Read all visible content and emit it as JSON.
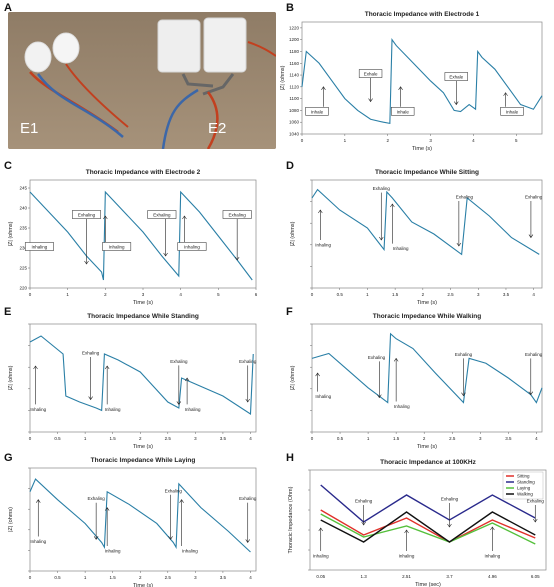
{
  "panels": {
    "A": "A",
    "B": "B",
    "C": "C",
    "D": "D",
    "E": "E",
    "F": "F",
    "G": "G",
    "H": "H"
  },
  "photo": {
    "left_label": "E1",
    "right_label": "E2"
  },
  "colors": {
    "line": "#2a7fa6",
    "sitting": "#e0312a",
    "standing": "#2a2a8c",
    "laying": "#55c03c",
    "walking": "#111111"
  },
  "chart_data": [
    {
      "id": "B",
      "type": "line",
      "title": "Thoracic Impedance with Electrode 1",
      "xlabel": "Time (s)",
      "ylabel": "|Z| (ohms)",
      "xlim": [
        0,
        5.6
      ],
      "ylim": [
        1040,
        1230
      ],
      "xticks": [
        0,
        1,
        2,
        3,
        4,
        5
      ],
      "yticks": [
        1040,
        1060,
        1080,
        1100,
        1120,
        1140,
        1160,
        1180,
        1200,
        1220
      ],
      "x": [
        0,
        0.1,
        0.4,
        0.7,
        1.0,
        1.3,
        1.6,
        1.9,
        2.05,
        2.1,
        2.2,
        2.6,
        3.0,
        3.3,
        3.55,
        3.7,
        3.9,
        4.05,
        4.1,
        4.2,
        4.5,
        4.8,
        5.1,
        5.4,
        5.6
      ],
      "y": [
        1120,
        1180,
        1160,
        1130,
        1100,
        1080,
        1065,
        1060,
        1058,
        1200,
        1190,
        1160,
        1130,
        1110,
        1080,
        1078,
        1090,
        1082,
        1180,
        1170,
        1150,
        1120,
        1090,
        1082,
        1105
      ],
      "annotations": [
        {
          "text": "Inhale",
          "x": 0.35,
          "y": 1076,
          "ax": 0.5,
          "ay": 1120
        },
        {
          "text": "Exhale",
          "x": 1.6,
          "y": 1140,
          "ax": 1.6,
          "ay": 1095
        },
        {
          "text": "Inhale",
          "x": 2.35,
          "y": 1076,
          "ax": 2.3,
          "ay": 1120
        },
        {
          "text": "Exhale",
          "x": 3.6,
          "y": 1135,
          "ax": 3.6,
          "ay": 1090
        },
        {
          "text": "Inhale",
          "x": 4.9,
          "y": 1076,
          "ax": 4.75,
          "ay": 1110
        }
      ]
    },
    {
      "id": "C",
      "type": "line",
      "title": "Thoracic Impedance with Electrode 2",
      "xlabel": "Time (s)",
      "ylabel": "|Z| (ohms)",
      "xlim": [
        0,
        6
      ],
      "ylim": [
        220,
        247
      ],
      "xticks": [
        0,
        1,
        2,
        3,
        4,
        5,
        6
      ],
      "yticks": [
        220,
        225,
        230,
        235,
        240,
        245
      ],
      "x": [
        0,
        0.5,
        1.0,
        1.5,
        1.9,
        1.95,
        2.0,
        2.5,
        3.0,
        3.5,
        3.95,
        4.0,
        4.5,
        5.0,
        5.5,
        5.9
      ],
      "y": [
        244,
        239,
        234,
        228,
        224,
        222,
        244,
        239,
        234,
        228,
        223,
        244,
        239,
        233,
        227,
        222
      ],
      "annotations": [
        {
          "text": "Inhaling",
          "x": 0.25,
          "y": 230,
          "ax": 0,
          "ay": 0
        },
        {
          "text": "Exhaling",
          "x": 1.5,
          "y": 238,
          "ax": 1.5,
          "ay": 226
        },
        {
          "text": "Inhaling",
          "x": 2.3,
          "y": 230,
          "ax": 2.0,
          "ay": 238
        },
        {
          "text": "Exhaling",
          "x": 3.5,
          "y": 238,
          "ax": 3.6,
          "ay": 228
        },
        {
          "text": "Inhaling",
          "x": 4.3,
          "y": 230,
          "ax": 4.1,
          "ay": 238
        },
        {
          "text": "Exhaling",
          "x": 5.5,
          "y": 238,
          "ax": 5.5,
          "ay": 227
        }
      ]
    },
    {
      "id": "D",
      "type": "line",
      "title": "Thoracic Impedance While Sitting",
      "xlabel": "Time (s)",
      "ylabel": "|Z| (ohms)",
      "xlim": [
        0,
        4.15
      ],
      "ylim": [
        180,
        270
      ],
      "xticks": [
        "0",
        "0.5",
        "1",
        "1.5",
        "2",
        "2.5",
        "3",
        "3.5",
        "4"
      ],
      "x": [
        0,
        0.1,
        0.5,
        1.0,
        1.3,
        1.35,
        1.45,
        1.8,
        2.2,
        2.7,
        2.8,
        3.2,
        3.6,
        4.1
      ],
      "y": [
        255,
        262,
        245,
        230,
        212,
        260,
        255,
        235,
        225,
        208,
        255,
        240,
        222,
        208
      ],
      "annotations": [
        {
          "text": "Inhaling",
          "x": 0.2,
          "y": 215,
          "ax": 0.15,
          "ay": 245
        },
        {
          "text": "Exhaling",
          "x": 1.25,
          "y": 262,
          "ax": 1.25,
          "ay": 220
        },
        {
          "text": "Inhaling",
          "x": 1.6,
          "y": 212,
          "ax": 1.45,
          "ay": 250
        },
        {
          "text": "Exhaling",
          "x": 2.75,
          "y": 255,
          "ax": 2.65,
          "ay": 215
        },
        {
          "text": "Exhaling",
          "x": 4.0,
          "y": 255,
          "ax": 3.95,
          "ay": 222
        }
      ]
    },
    {
      "id": "E",
      "type": "line",
      "title": "Thoracic Impedance While Standing",
      "xlabel": "Time (s)",
      "ylabel": "|Z| (ohms)",
      "xlim": [
        0,
        4.1
      ],
      "ylim": [
        220,
        310
      ],
      "xticks": [
        "0",
        "0.5",
        "1",
        "1.5",
        "2",
        "2.5",
        "3",
        "3.5",
        "4"
      ],
      "x": [
        0,
        0.2,
        0.6,
        0.65,
        0.9,
        1.2,
        1.3,
        1.35,
        1.6,
        2.0,
        2.5,
        2.7,
        2.75,
        3.0,
        3.5,
        4.0,
        4.05
      ],
      "y": [
        295,
        300,
        285,
        250,
        245,
        240,
        238,
        285,
        280,
        270,
        245,
        240,
        265,
        260,
        250,
        235,
        285
      ],
      "annotations": [
        {
          "text": "Inhaling",
          "x": 0.15,
          "y": 238,
          "ax": 0.1,
          "ay": 275
        },
        {
          "text": "Exhaling",
          "x": 1.1,
          "y": 285,
          "ax": 1.1,
          "ay": 247
        },
        {
          "text": "Inhaling",
          "x": 1.5,
          "y": 238,
          "ax": 1.4,
          "ay": 275
        },
        {
          "text": "Exhaling",
          "x": 2.7,
          "y": 278,
          "ax": 2.7,
          "ay": 243
        },
        {
          "text": "Inhaling",
          "x": 2.95,
          "y": 238,
          "ax": 2.85,
          "ay": 265
        },
        {
          "text": "Exhaling",
          "x": 3.95,
          "y": 278,
          "ax": 3.95,
          "ay": 245
        }
      ]
    },
    {
      "id": "F",
      "type": "line",
      "title": "Thoracic Impedance While Walking",
      "xlabel": "Time (s)",
      "ylabel": "|Z| (ohms)",
      "xlim": [
        0,
        4.1
      ],
      "ylim": [
        300,
        410
      ],
      "xticks": [
        "0",
        "0.5",
        "1",
        "1.5",
        "2",
        "2.5",
        "3",
        "3.5",
        "4"
      ],
      "x": [
        0,
        0.3,
        0.7,
        1.0,
        1.35,
        1.4,
        1.5,
        1.8,
        2.2,
        2.7,
        2.8,
        3.1,
        3.5,
        3.9,
        4.0,
        4.1
      ],
      "y": [
        375,
        380,
        360,
        345,
        330,
        400,
        395,
        385,
        360,
        330,
        375,
        370,
        355,
        338,
        330,
        345
      ],
      "annotations": [
        {
          "text": "Inhaling",
          "x": 0.2,
          "y": 335,
          "ax": 0.1,
          "ay": 360
        },
        {
          "text": "Exhaling",
          "x": 1.15,
          "y": 375,
          "ax": 1.2,
          "ay": 335
        },
        {
          "text": "Inhaling",
          "x": 1.6,
          "y": 325,
          "ax": 1.5,
          "ay": 375
        },
        {
          "text": "Exhaling",
          "x": 2.7,
          "y": 378,
          "ax": 2.7,
          "ay": 337
        },
        {
          "text": "Exhaling",
          "x": 3.95,
          "y": 378,
          "ax": 3.9,
          "ay": 338
        }
      ]
    },
    {
      "id": "G",
      "type": "line",
      "title": "Thoracic Impedance While Laying",
      "xlabel": "Time (s)",
      "ylabel": "|Z| (ohms)",
      "xlim": [
        0,
        4.1
      ],
      "ylim": [
        300,
        365
      ],
      "xticks": [
        "0",
        "0.5",
        "1",
        "1.5",
        "2",
        "2.5",
        "3",
        "3.5",
        "4"
      ],
      "x": [
        0,
        0.1,
        0.5,
        1.0,
        1.3,
        1.35,
        1.4,
        1.8,
        2.3,
        2.6,
        2.65,
        2.7,
        3.1,
        3.6,
        4.0
      ],
      "y": [
        350,
        358,
        345,
        330,
        318,
        315,
        350,
        342,
        330,
        318,
        315,
        355,
        340,
        325,
        312
      ],
      "annotations": [
        {
          "text": "Inhaling",
          "x": 0.15,
          "y": 318,
          "ax": 0.15,
          "ay": 345
        },
        {
          "text": "Exhaling",
          "x": 1.2,
          "y": 345,
          "ax": 1.2,
          "ay": 320
        },
        {
          "text": "Inhaling",
          "x": 1.5,
          "y": 312,
          "ax": 1.4,
          "ay": 340
        },
        {
          "text": "Exhaling",
          "x": 2.6,
          "y": 350,
          "ax": 2.55,
          "ay": 320
        },
        {
          "text": "Inhaling",
          "x": 2.9,
          "y": 312,
          "ax": 2.75,
          "ay": 345
        },
        {
          "text": "Exhaling",
          "x": 3.95,
          "y": 345,
          "ax": 3.95,
          "ay": 318
        }
      ]
    },
    {
      "id": "H",
      "type": "line",
      "title": "Thoracic Impedance at 100KHz",
      "xlabel": "Time (sec)",
      "ylabel": "Thoracic Impedance (Ohm)",
      "ylim": [
        0,
        10
      ],
      "categories": [
        "0.05",
        "1.3",
        "2.51",
        "3.7",
        "4.96",
        "6.05"
      ],
      "series": [
        {
          "name": "Sitting",
          "color": "#e0312a",
          "values": [
            6.0,
            3.5,
            5.2,
            2.8,
            5.0,
            3.2
          ]
        },
        {
          "name": "Standing",
          "color": "#2a2a8c",
          "values": [
            8.5,
            4.8,
            7.5,
            5.0,
            7.5,
            5.2
          ]
        },
        {
          "name": "Laying",
          "color": "#55c03c",
          "values": [
            5.6,
            3.3,
            4.4,
            2.8,
            4.7,
            2.6
          ]
        },
        {
          "name": "Walking",
          "color": "#111111",
          "values": [
            5.0,
            2.8,
            5.8,
            2.8,
            5.8,
            3.5
          ]
        }
      ],
      "annotations": [
        {
          "text": "Inhaling",
          "x": 0,
          "y": 1.3,
          "ax": 0,
          "ay": 4.2
        },
        {
          "text": "Exhaling",
          "x": 1,
          "y": 6.8,
          "ax": 1,
          "ay": 4.5
        },
        {
          "text": "Inhaling",
          "x": 2,
          "y": 1.3,
          "ax": 2,
          "ay": 4.0
        },
        {
          "text": "Exhaling",
          "x": 3,
          "y": 7.0,
          "ax": 3,
          "ay": 4.3
        },
        {
          "text": "Inhaling",
          "x": 4,
          "y": 1.3,
          "ax": 4,
          "ay": 4.3
        },
        {
          "text": "Exhaling",
          "x": 5,
          "y": 6.8,
          "ax": 5,
          "ay": 4.8
        }
      ]
    }
  ]
}
